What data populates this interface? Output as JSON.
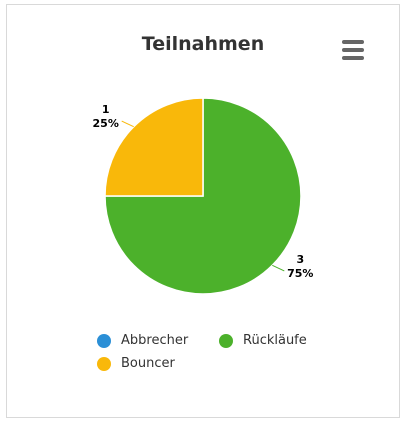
{
  "chart": {
    "title": "Teilnahmen",
    "menu_icon": "hamburger-menu-icon"
  },
  "chart_data": {
    "type": "pie",
    "title": "Teilnahmen",
    "series": [
      {
        "name": "Abbrecher",
        "value": 0,
        "percent": 0,
        "color": "#2b8fd6"
      },
      {
        "name": "Rückläufe",
        "value": 3,
        "percent": 75,
        "color": "#4cb12b"
      },
      {
        "name": "Bouncer",
        "value": 1,
        "percent": 25,
        "color": "#f9b80a"
      }
    ],
    "data_labels": [
      {
        "series": "Bouncer",
        "count": "1",
        "pct": "25%"
      },
      {
        "series": "Rückläufe",
        "count": "3",
        "pct": "75%"
      }
    ],
    "legend_placement": "bottom"
  }
}
